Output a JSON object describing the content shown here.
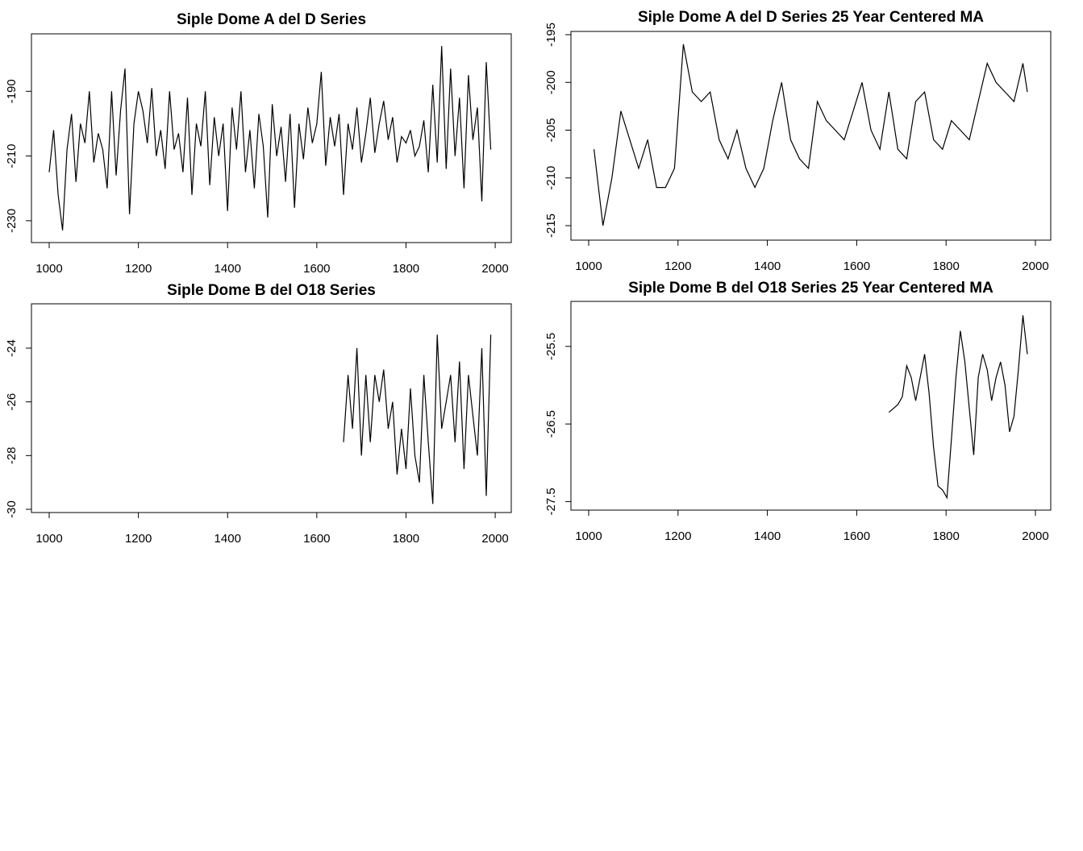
{
  "chart_data": [
    {
      "type": "line",
      "title": "Siple Dome A del D Series",
      "color": "#000000",
      "xlim": [
        960.2,
        2036
      ],
      "ylim": [
        -236.75,
        -172.25
      ],
      "xticks": [
        1000,
        1200,
        1400,
        1600,
        1800,
        2000
      ],
      "yticks": [
        -230,
        -210,
        -190
      ],
      "x": [
        1000,
        1010,
        1020,
        1030,
        1040,
        1050,
        1060,
        1070,
        1080,
        1090,
        1100,
        1110,
        1120,
        1130,
        1140,
        1150,
        1160,
        1170,
        1180,
        1190,
        1200,
        1210,
        1220,
        1230,
        1240,
        1250,
        1260,
        1270,
        1280,
        1290,
        1300,
        1310,
        1320,
        1330,
        1340,
        1350,
        1360,
        1370,
        1380,
        1390,
        1400,
        1410,
        1420,
        1430,
        1440,
        1450,
        1460,
        1470,
        1480,
        1490,
        1500,
        1510,
        1520,
        1530,
        1540,
        1550,
        1560,
        1570,
        1580,
        1590,
        1600,
        1610,
        1620,
        1630,
        1640,
        1650,
        1660,
        1670,
        1680,
        1690,
        1700,
        1710,
        1720,
        1730,
        1740,
        1750,
        1760,
        1770,
        1780,
        1790,
        1800,
        1810,
        1820,
        1830,
        1840,
        1850,
        1860,
        1870,
        1880,
        1890,
        1900,
        1910,
        1920,
        1930,
        1940,
        1950,
        1960,
        1970,
        1980,
        1990
      ],
      "values": [
        -215,
        -202,
        -222,
        -233,
        -208,
        -197,
        -218,
        -200,
        -206,
        -190,
        -212,
        -203,
        -208,
        -220,
        -190,
        -216,
        -196,
        -183,
        -228,
        -200,
        -190,
        -196,
        -206,
        -189,
        -210,
        -202,
        -214,
        -190,
        -208,
        -203,
        -215,
        -192,
        -222,
        -200,
        -207,
        -190,
        -219,
        -198,
        -210,
        -200,
        -227,
        -195,
        -208,
        -190,
        -215,
        -202,
        -220,
        -197,
        -207,
        -229,
        -194,
        -210,
        -201,
        -218,
        -197,
        -226,
        -200,
        -211,
        -195,
        -206,
        -200,
        -184,
        -213,
        -198,
        -207,
        -197,
        -222,
        -200,
        -208,
        -195,
        -212,
        -203,
        -192,
        -209,
        -200,
        -193,
        -205,
        -198,
        -212,
        -204,
        -206,
        -202,
        -210,
        -207,
        -199,
        -215,
        -188,
        -212,
        -176,
        -214,
        -183,
        -210,
        -192,
        -220,
        -185,
        -205,
        -195,
        -224,
        -181,
        -208
      ]
    },
    {
      "type": "line",
      "title": "Siple Dome A del D Series 25 Year Centered MA",
      "color": "#000000",
      "xlim": [
        960.3,
        2034.3
      ],
      "ylim": [
        -216.52,
        -194.66
      ],
      "xticks": [
        1000,
        1200,
        1400,
        1600,
        1800,
        2000
      ],
      "yticks": [
        -215,
        -210,
        -205,
        -200,
        -195
      ],
      "x": [
        1012,
        1032,
        1052,
        1072,
        1092,
        1112,
        1132,
        1152,
        1172,
        1192,
        1212,
        1232,
        1252,
        1272,
        1292,
        1312,
        1332,
        1352,
        1372,
        1392,
        1412,
        1432,
        1452,
        1472,
        1492,
        1512,
        1532,
        1552,
        1572,
        1592,
        1612,
        1632,
        1652,
        1672,
        1692,
        1712,
        1732,
        1752,
        1772,
        1792,
        1812,
        1832,
        1852,
        1872,
        1892,
        1912,
        1932,
        1952,
        1972,
        1982
      ],
      "values": [
        -207,
        -215,
        -210,
        -203,
        -206,
        -209,
        -206,
        -211,
        -211,
        -209,
        -196,
        -201,
        -202,
        -201,
        -206,
        -208,
        -205,
        -209,
        -211,
        -209,
        -204,
        -200,
        -206,
        -208,
        -209,
        -202,
        -204,
        -205,
        -206,
        -203,
        -200,
        -205,
        -207,
        -201,
        -207,
        -208,
        -202,
        -201,
        -206,
        -207,
        -204,
        -205,
        -206,
        -202,
        -198,
        -200,
        -201,
        -202,
        -198,
        -201
      ]
    },
    {
      "type": "line",
      "title": "Siple Dome B del O18 Series",
      "color": "#000000",
      "xlim": [
        960.2,
        2036
      ],
      "ylim": [
        -30.12,
        -22.35
      ],
      "xticks": [
        1000,
        1200,
        1400,
        1600,
        1800,
        2000
      ],
      "yticks": [
        -30,
        -28,
        -26,
        -24
      ],
      "x": [
        1660,
        1670,
        1680,
        1690,
        1700,
        1710,
        1720,
        1730,
        1740,
        1750,
        1760,
        1770,
        1780,
        1790,
        1800,
        1810,
        1820,
        1830,
        1840,
        1850,
        1860,
        1870,
        1880,
        1890,
        1900,
        1910,
        1920,
        1930,
        1940,
        1950,
        1960,
        1970,
        1980,
        1990
      ],
      "values": [
        -27.5,
        -25,
        -27,
        -24,
        -28,
        -25,
        -27.5,
        -25,
        -26,
        -24.8,
        -27,
        -26,
        -28.7,
        -27,
        -28.5,
        -25.5,
        -28,
        -29,
        -25,
        -27.5,
        -29.8,
        -23.5,
        -27,
        -26,
        -25,
        -27.5,
        -24.5,
        -28.5,
        -25,
        -26.5,
        -28,
        -24,
        -29.5,
        -23.5
      ]
    },
    {
      "type": "line",
      "title": "Siple Dome B del O18 Series 25 Year Centered MA",
      "color": "#000000",
      "xlim": [
        960.3,
        2034.3
      ],
      "ylim": [
        -27.61,
        -24.92
      ],
      "xticks": [
        1000,
        1200,
        1400,
        1600,
        1800,
        2000
      ],
      "yticks": [
        -27.5,
        -26.5,
        -25.5
      ],
      "x": [
        1672,
        1682,
        1692,
        1702,
        1712,
        1722,
        1732,
        1742,
        1752,
        1762,
        1772,
        1782,
        1792,
        1802,
        1812,
        1822,
        1832,
        1842,
        1852,
        1862,
        1872,
        1882,
        1892,
        1902,
        1912,
        1922,
        1932,
        1942,
        1952,
        1962,
        1972,
        1982
      ],
      "values": [
        -26.35,
        -26.3,
        -26.25,
        -26.15,
        -25.75,
        -25.9,
        -26.2,
        -25.9,
        -25.6,
        -26.1,
        -26.8,
        -27.3,
        -27.35,
        -27.45,
        -26.7,
        -25.9,
        -25.3,
        -25.7,
        -26.3,
        -26.9,
        -25.9,
        -25.6,
        -25.8,
        -26.2,
        -25.9,
        -25.7,
        -26.0,
        -26.6,
        -26.4,
        -25.8,
        -25.1,
        -25.6
      ]
    }
  ]
}
